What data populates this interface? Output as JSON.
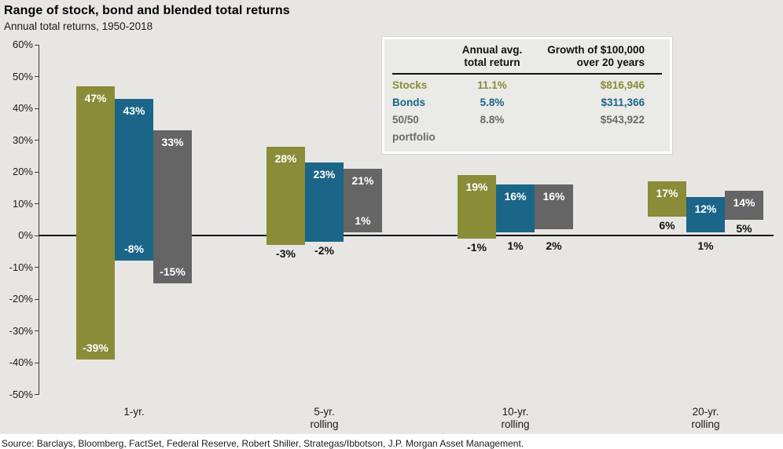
{
  "header": {
    "title": "Range of stock, bond and blended total returns",
    "subtitle": "Annual total returns, 1950-2018"
  },
  "summary_table": {
    "col_return_header": "Annual avg.\ntotal return",
    "col_growth_header": "Growth of $100,000\nover 20 years",
    "rows": [
      {
        "label": "Stocks",
        "return": "11.1%",
        "growth": "$816,946",
        "color": "#8a8c38"
      },
      {
        "label": "Bonds",
        "return": "5.8%",
        "growth": "$311,366",
        "color": "#1b6589"
      },
      {
        "label": "50/50 portfolio",
        "return": "8.8%",
        "growth": "$543,922",
        "color": "#6b6a68"
      }
    ]
  },
  "chart_data": {
    "type": "bar",
    "title": "Range of stock, bond and blended total returns",
    "subtitle": "Annual total returns, 1950-2018",
    "categories": [
      "1-yr.",
      "5-yr.\nrolling",
      "10-yr.\nrolling",
      "20-yr.\nrolling"
    ],
    "series": [
      {
        "name": "Stocks",
        "color": "#8a8c38",
        "max": [
          47,
          28,
          19,
          17
        ],
        "min": [
          -39,
          -3,
          -1,
          6
        ],
        "min_label_inside": [
          true,
          false,
          false,
          false
        ]
      },
      {
        "name": "Bonds",
        "color": "#1b6589",
        "max": [
          43,
          23,
          16,
          12
        ],
        "min": [
          -8,
          -2,
          1,
          1
        ],
        "min_label_inside": [
          true,
          false,
          false,
          false
        ]
      },
      {
        "name": "50/50 portfolio",
        "color": "#656565",
        "max": [
          33,
          21,
          16,
          14
        ],
        "min": [
          -15,
          1,
          2,
          5
        ],
        "min_label_inside": [
          true,
          true,
          false,
          false
        ]
      }
    ],
    "ylabel": "",
    "xlabel": "",
    "ylim": [
      -50,
      60
    ],
    "yticks": [
      60,
      50,
      40,
      30,
      20,
      10,
      0,
      -10,
      -20,
      -30,
      -40,
      -50
    ],
    "ytick_labels": [
      "60%",
      "50%",
      "40%",
      "30%",
      "20%",
      "10%",
      "0%",
      "-10%",
      "-20%",
      "-30%",
      "-40%",
      "-50%"
    ],
    "grid": false,
    "legend_position": "top-right-table"
  },
  "source": "Source: Barclays, Bloomberg, FactSet, Federal Reserve, Robert Shiller, Strategas/Ibbotson, J.P. Morgan Asset Management."
}
